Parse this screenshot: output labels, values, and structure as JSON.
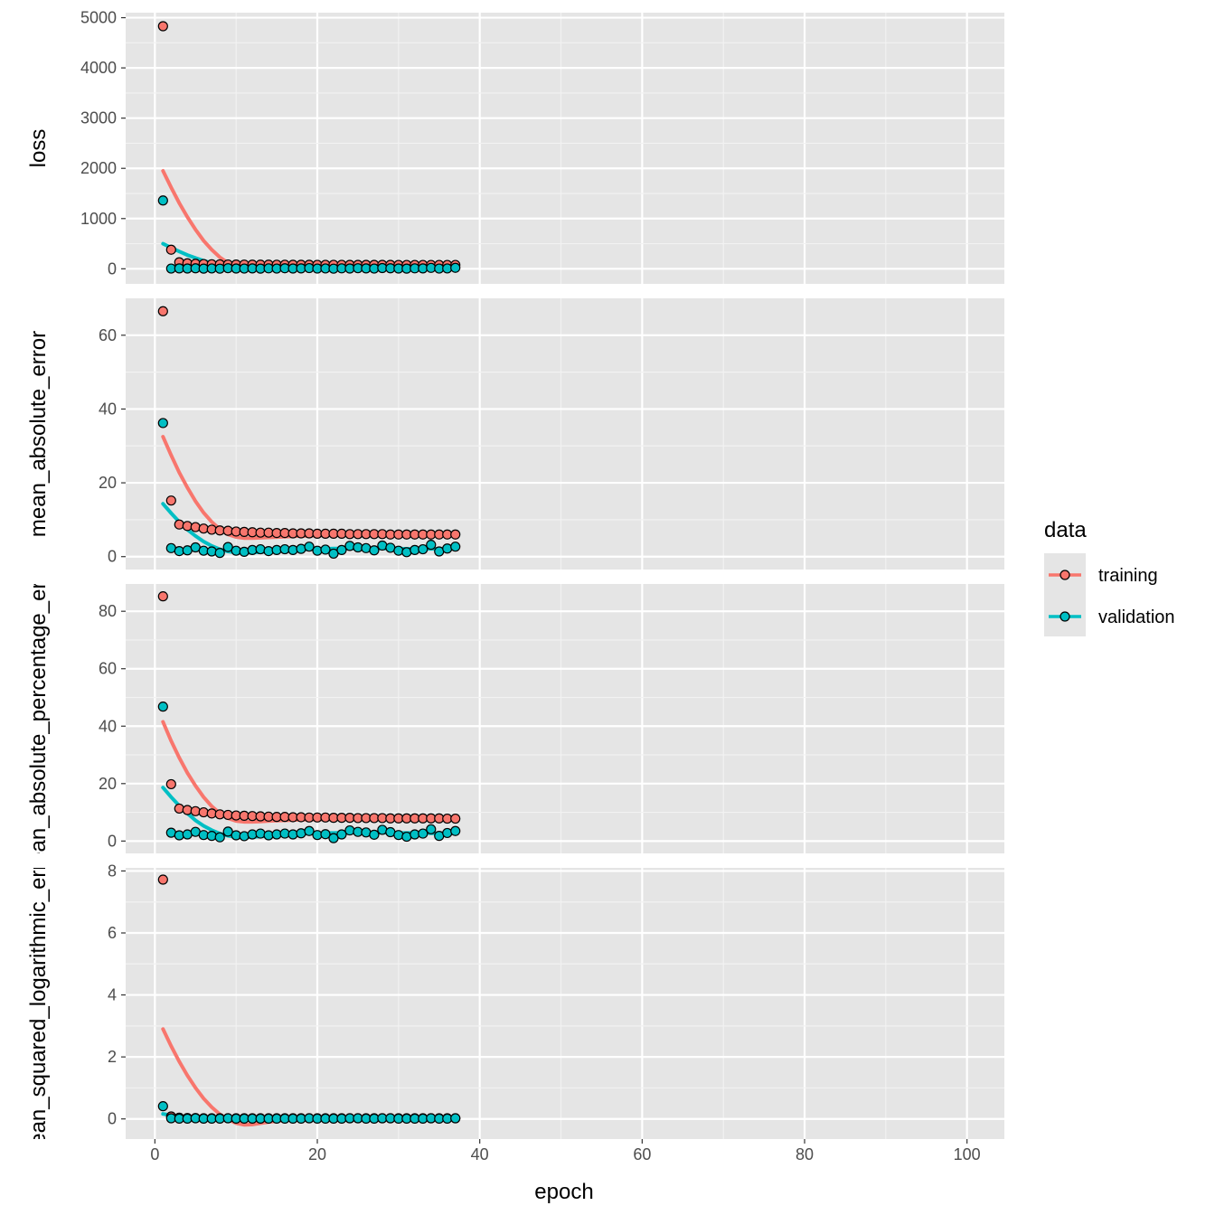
{
  "chart_data": {
    "type": "line",
    "xlabel": "epoch",
    "xlim": [
      -3.6,
      104.6
    ],
    "x_ticks": [
      0,
      20,
      40,
      60,
      80,
      100
    ],
    "grid": true,
    "legend": {
      "title": "data",
      "placement": "right",
      "entries": [
        "training",
        "validation"
      ]
    },
    "colors": {
      "training": "#F8766D",
      "validation": "#00BFC4"
    },
    "panels": [
      {
        "ylabel": "loss",
        "ylim": [
          -300,
          5100
        ],
        "y_ticks": [
          0,
          1000,
          2000,
          3000,
          4000,
          5000
        ],
        "series": [
          {
            "name": "training",
            "epochs": [
              1,
              37
            ],
            "points": [
              4830,
              380,
              130,
              110,
              100,
              95,
              90,
              88,
              86,
              85,
              84,
              83,
              82,
              82,
              81,
              81,
              80,
              80,
              80,
              79,
              79,
              79,
              79,
              78,
              78,
              78,
              78,
              78,
              78,
              77,
              77,
              77,
              77,
              77,
              77,
              77,
              77
            ],
            "smooth": [
              1950,
              1620,
              1310,
              1030,
              780,
              560,
              380,
              230,
              115,
              40,
              0,
              0,
              5,
              15,
              22,
              28,
              32,
              36,
              38,
              40,
              42,
              43,
              45,
              46,
              47,
              48,
              49,
              50,
              52,
              53,
              54,
              55,
              56,
              57,
              58,
              60,
              62
            ]
          },
          {
            "name": "validation",
            "epochs": [
              1,
              37
            ],
            "points": [
              1360,
              5,
              8,
              6,
              10,
              4,
              7,
              3,
              12,
              6,
              5,
              8,
              4,
              9,
              5,
              11,
              6,
              8,
              14,
              5,
              7,
              3,
              9,
              6,
              12,
              8,
              5,
              15,
              10,
              6,
              4,
              9,
              8,
              18,
              5,
              7,
              20
            ],
            "smooth": [
              500,
              420,
              345,
              275,
              215,
              160,
              115,
              75,
              45,
              20,
              5,
              0,
              2,
              5,
              8,
              10,
              12,
              13,
              14,
              14,
              14,
              14,
              13,
              13,
              12,
              12,
              12,
              11,
              11,
              11,
              11,
              11,
              12,
              12,
              13,
              14,
              15
            ]
          }
        ]
      },
      {
        "ylabel": "mean_absolute_error",
        "ylim": [
          -3.5,
          70
        ],
        "y_ticks": [
          0,
          20,
          40,
          60
        ],
        "series": [
          {
            "name": "training",
            "epochs": [
              1,
              37
            ],
            "points": [
              66.5,
              15.2,
              8.7,
              8.3,
              8.0,
              7.6,
              7.3,
              7.1,
              7.0,
              6.8,
              6.7,
              6.6,
              6.5,
              6.5,
              6.4,
              6.4,
              6.3,
              6.3,
              6.3,
              6.2,
              6.2,
              6.2,
              6.2,
              6.1,
              6.1,
              6.1,
              6.1,
              6.1,
              6.0,
              6.0,
              6.0,
              6.0,
              6.0,
              6.0,
              6.0,
              6.0,
              6.0
            ],
            "smooth": [
              32.5,
              27.5,
              22.8,
              18.7,
              15.0,
              11.9,
              9.4,
              7.4,
              6.0,
              5.3,
              5.0,
              5.0,
              5.1,
              5.2,
              5.3,
              5.4,
              5.5,
              5.6,
              5.6,
              5.7,
              5.7,
              5.8,
              5.8,
              5.8,
              5.9,
              5.9,
              5.9,
              5.9,
              5.9,
              5.9,
              5.9,
              5.9,
              5.9,
              5.9,
              5.9,
              5.9,
              5.9
            ]
          },
          {
            "name": "validation",
            "epochs": [
              1,
              37
            ],
            "points": [
              36.2,
              2.3,
              1.5,
              1.7,
              2.5,
              1.6,
              1.4,
              1.0,
              2.6,
              1.6,
              1.3,
              1.8,
              2.0,
              1.5,
              1.8,
              2.0,
              1.8,
              2.1,
              2.7,
              1.6,
              1.9,
              0.8,
              1.8,
              2.9,
              2.5,
              2.3,
              1.7,
              3.0,
              2.4,
              1.6,
              1.2,
              1.8,
              2.0,
              3.2,
              1.4,
              2.2,
              2.7
            ],
            "smooth": [
              14.3,
              11.8,
              9.4,
              7.3,
              5.6,
              4.1,
              2.9,
              2.0,
              1.4,
              1.1,
              1.0,
              1.1,
              1.2,
              1.3,
              1.5,
              1.6,
              1.8,
              1.9,
              2.0,
              2.1,
              2.1,
              2.2,
              2.2,
              2.2,
              2.2,
              2.2,
              2.2,
              2.2,
              2.2,
              2.2,
              2.1,
              2.1,
              2.1,
              2.1,
              2.1,
              2.1,
              2.1
            ]
          }
        ]
      },
      {
        "ylabel": "mean_absolute_percentage_error",
        "ylim": [
          -4.3,
          89.5
        ],
        "y_ticks": [
          0,
          20,
          40,
          60,
          80
        ],
        "series": [
          {
            "name": "training",
            "epochs": [
              1,
              37
            ],
            "points": [
              85.2,
              19.8,
              11.3,
              10.8,
              10.4,
              10.0,
              9.6,
              9.3,
              9.1,
              8.9,
              8.8,
              8.7,
              8.6,
              8.5,
              8.4,
              8.4,
              8.3,
              8.3,
              8.2,
              8.2,
              8.2,
              8.1,
              8.1,
              8.1,
              8.0,
              8.0,
              8.0,
              8.0,
              7.9,
              7.9,
              7.9,
              7.9,
              7.9,
              7.9,
              7.9,
              7.8,
              7.8
            ],
            "smooth": [
              41.5,
              34.9,
              29.0,
              23.7,
              19.2,
              15.3,
              12.1,
              9.6,
              7.9,
              7.0,
              6.7,
              6.7,
              6.8,
              7.0,
              7.1,
              7.2,
              7.3,
              7.4,
              7.4,
              7.5,
              7.5,
              7.6,
              7.6,
              7.6,
              7.6,
              7.7,
              7.7,
              7.7,
              7.7,
              7.7,
              7.7,
              7.7,
              7.7,
              7.7,
              7.7,
              7.7,
              7.7
            ]
          },
          {
            "name": "validation",
            "epochs": [
              1,
              37
            ],
            "points": [
              46.8,
              2.9,
              2.0,
              2.3,
              3.2,
              2.1,
              1.8,
              1.3,
              3.3,
              2.0,
              1.7,
              2.3,
              2.6,
              2.0,
              2.3,
              2.6,
              2.3,
              2.7,
              3.5,
              2.1,
              2.4,
              1.0,
              2.3,
              3.7,
              3.2,
              3.0,
              2.2,
              3.9,
              3.1,
              2.1,
              1.5,
              2.3,
              2.6,
              4.1,
              1.8,
              2.8,
              3.5
            ],
            "smooth": [
              18.6,
              15.3,
              12.3,
              9.6,
              7.2,
              5.3,
              3.8,
              2.6,
              1.8,
              1.4,
              1.3,
              1.4,
              1.6,
              1.7,
              1.9,
              2.1,
              2.3,
              2.5,
              2.6,
              2.7,
              2.8,
              2.8,
              2.9,
              2.9,
              2.9,
              2.9,
              2.9,
              2.9,
              2.9,
              2.8,
              2.8,
              2.8,
              2.8,
              2.7,
              2.7,
              2.7,
              2.7
            ]
          }
        ]
      },
      {
        "ylabel": "mean_squared_logarithmic_error",
        "ylim": [
          -0.65,
          8.1
        ],
        "y_ticks": [
          0,
          2,
          4,
          6,
          8
        ],
        "series": [
          {
            "name": "training",
            "epochs": [
              1,
              37
            ],
            "points": [
              7.72,
              0.08,
              0.04,
              0.03,
              0.03,
              0.02,
              0.02,
              0.02,
              0.02,
              0.02,
              0.02,
              0.02,
              0.02,
              0.02,
              0.02,
              0.02,
              0.02,
              0.02,
              0.02,
              0.02,
              0.02,
              0.02,
              0.02,
              0.02,
              0.02,
              0.02,
              0.02,
              0.02,
              0.02,
              0.02,
              0.02,
              0.02,
              0.02,
              0.02,
              0.02,
              0.02,
              0.02
            ],
            "smooth": [
              2.9,
              2.35,
              1.85,
              1.4,
              1.0,
              0.66,
              0.38,
              0.15,
              -0.02,
              -0.14,
              -0.19,
              -0.18,
              -0.14,
              -0.1,
              -0.07,
              -0.04,
              -0.02,
              0.0,
              0.0,
              0.01,
              0.01,
              0.01,
              0.01,
              0.01,
              0.01,
              0.01,
              0.01,
              0.01,
              0.01,
              0.01,
              0.01,
              0.01,
              0.01,
              0.01,
              0.01,
              0.01,
              0.01
            ]
          },
          {
            "name": "validation",
            "epochs": [
              1,
              37
            ],
            "points": [
              0.41,
              0.02,
              0.01,
              0.01,
              0.02,
              0.01,
              0.01,
              0.01,
              0.02,
              0.01,
              0.01,
              0.01,
              0.01,
              0.01,
              0.01,
              0.01,
              0.01,
              0.01,
              0.02,
              0.01,
              0.01,
              0.01,
              0.01,
              0.02,
              0.02,
              0.01,
              0.01,
              0.02,
              0.02,
              0.01,
              0.01,
              0.01,
              0.01,
              0.02,
              0.01,
              0.01,
              0.02
            ],
            "smooth": [
              0.16,
              0.12,
              0.09,
              0.06,
              0.04,
              0.02,
              0.01,
              0.0,
              0.0,
              0.0,
              0.0,
              0.0,
              0.01,
              0.01,
              0.01,
              0.01,
              0.01,
              0.01,
              0.01,
              0.01,
              0.01,
              0.01,
              0.01,
              0.01,
              0.01,
              0.01,
              0.01,
              0.01,
              0.01,
              0.01,
              0.01,
              0.01,
              0.01,
              0.01,
              0.01,
              0.01,
              0.01
            ]
          }
        ]
      }
    ]
  }
}
